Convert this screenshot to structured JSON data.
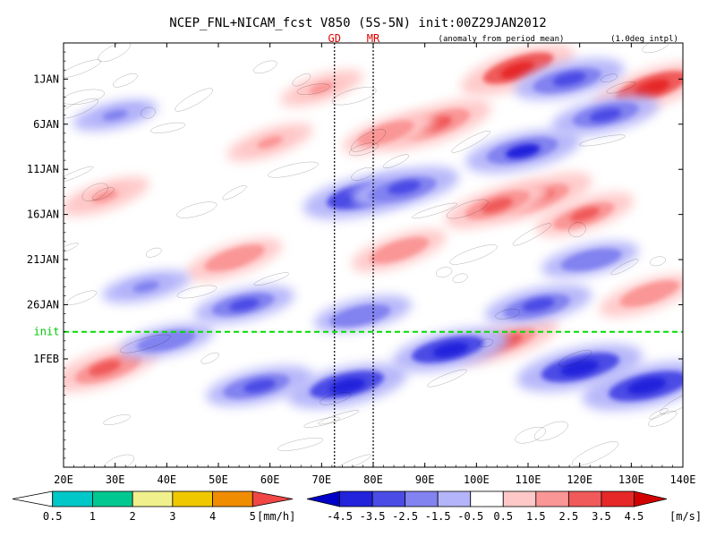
{
  "chart_data": {
    "type": "heatmap",
    "title": "NCEP_FNL+NICAM_fcst V850 (5S-5N) init:00Z29JAN2012",
    "subtitle": "(anomaly from period mean)",
    "note": "(1.0deg intpl)",
    "x_axis": {
      "range": [
        20,
        140
      ],
      "ticks": [
        20,
        30,
        40,
        50,
        60,
        70,
        80,
        90,
        100,
        110,
        120,
        130,
        140
      ],
      "tick_labels": [
        "20E",
        "30E",
        "40E",
        "50E",
        "60E",
        "70E",
        "80E",
        "90E",
        "100E",
        "110E",
        "120E",
        "130E",
        "140E"
      ]
    },
    "y_axis": {
      "range_days": [
        -3,
        44
      ],
      "ticks": [
        1,
        6,
        11,
        16,
        21,
        26,
        32
      ],
      "tick_labels": [
        "1JAN",
        "6JAN",
        "11JAN",
        "16JAN",
        "21JAN",
        "26JAN",
        "1FEB"
      ]
    },
    "markers": [
      {
        "label": "GD",
        "lon": 72.5
      },
      {
        "label": "MR",
        "lon": 80
      }
    ],
    "init_line": {
      "label": "init",
      "day": 29
    },
    "precip_colorbar": {
      "unit": "[mm/h]",
      "levels": [
        0.5,
        1,
        2,
        3,
        4,
        5
      ],
      "level_labels": [
        "0.5",
        "1",
        "2",
        "3",
        "4",
        "5"
      ],
      "colors": [
        "#ffffff",
        "#00c8c8",
        "#00c890",
        "#f0f08c",
        "#f0c800",
        "#f08c00",
        "#f04646"
      ]
    },
    "wind_colorbar": {
      "unit": "[m/s]",
      "levels": [
        -4.5,
        -3.5,
        -2.5,
        -1.5,
        -0.5,
        0.5,
        1.5,
        2.5,
        3.5,
        4.5
      ],
      "level_labels": [
        "-4.5",
        "-3.5",
        "-2.5",
        "-1.5",
        "-0.5",
        "0.5",
        "1.5",
        "2.5",
        "3.5",
        "4.5"
      ],
      "colors": [
        "#0000c8",
        "#2323dc",
        "#4b4be6",
        "#8282f0",
        "#b4b4fa",
        "#ffffff",
        "#ffc8c8",
        "#fa9696",
        "#f05a5a",
        "#e62828",
        "#d20000"
      ]
    },
    "features": [
      {
        "sign": "pos",
        "lon": 92,
        "day": 6,
        "value": 3.5
      },
      {
        "sign": "pos",
        "lon": 83,
        "day": 7,
        "value": 2.2
      },
      {
        "sign": "pos",
        "lon": 60,
        "day": 8,
        "value": 1.8
      },
      {
        "sign": "pos",
        "lon": 112,
        "day": 14,
        "value": 3.2
      },
      {
        "sign": "pos",
        "lon": 104,
        "day": 15,
        "value": 3.0
      },
      {
        "sign": "pos",
        "lon": 121,
        "day": 16,
        "value": 2.6
      },
      {
        "sign": "pos",
        "lon": 108,
        "day": 0,
        "value": 3.6
      },
      {
        "sign": "pos",
        "lon": 134,
        "day": 2,
        "value": 3.8
      },
      {
        "sign": "pos",
        "lon": 53,
        "day": 21,
        "value": 2.5
      },
      {
        "sign": "pos",
        "lon": 85,
        "day": 20,
        "value": 2.4
      },
      {
        "sign": "pos",
        "lon": 28,
        "day": 14,
        "value": 2.0
      },
      {
        "sign": "pos",
        "lon": 28,
        "day": 33,
        "value": 3.2
      },
      {
        "sign": "pos",
        "lon": 106,
        "day": 30,
        "value": 2.8
      },
      {
        "sign": "pos",
        "lon": 133,
        "day": 25,
        "value": 2.4
      },
      {
        "sign": "pos",
        "lon": 70,
        "day": 2,
        "value": 1.6
      },
      {
        "sign": "neg",
        "lon": 78,
        "day": 14,
        "value": -3.8
      },
      {
        "sign": "neg",
        "lon": 86,
        "day": 13,
        "value": -3.2
      },
      {
        "sign": "neg",
        "lon": 109,
        "day": 9,
        "value": -3.5
      },
      {
        "sign": "neg",
        "lon": 125,
        "day": 5,
        "value": -3.0
      },
      {
        "sign": "neg",
        "lon": 118,
        "day": 1,
        "value": -3.2
      },
      {
        "sign": "neg",
        "lon": 55,
        "day": 26,
        "value": -2.6
      },
      {
        "sign": "neg",
        "lon": 78,
        "day": 27,
        "value": -2.4
      },
      {
        "sign": "neg",
        "lon": 112,
        "day": 26,
        "value": -3.0
      },
      {
        "sign": "neg",
        "lon": 36,
        "day": 24,
        "value": -1.8
      },
      {
        "sign": "neg",
        "lon": 120,
        "day": 33,
        "value": -4.2
      },
      {
        "sign": "neg",
        "lon": 133,
        "day": 35,
        "value": -4.4
      },
      {
        "sign": "neg",
        "lon": 95,
        "day": 31,
        "value": -3.6
      },
      {
        "sign": "neg",
        "lon": 75,
        "day": 35,
        "value": -3.8
      },
      {
        "sign": "neg",
        "lon": 58,
        "day": 35,
        "value": -3.0
      },
      {
        "sign": "neg",
        "lon": 122,
        "day": 21,
        "value": -2.4
      },
      {
        "sign": "neg",
        "lon": 30,
        "day": 5,
        "value": -1.6
      },
      {
        "sign": "neg",
        "lon": 40,
        "day": 30,
        "value": -2.2
      }
    ]
  }
}
